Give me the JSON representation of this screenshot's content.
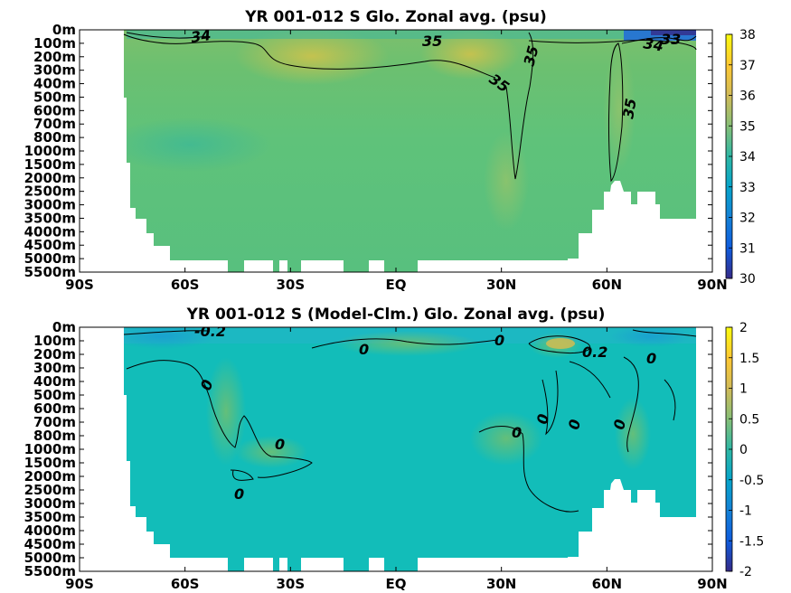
{
  "chart_data": [
    {
      "type": "heatmap",
      "title": "YR 001-012 S Glo. Zonal avg. (psu)",
      "x_tick_labels": [
        "90S",
        "60S",
        "30S",
        "EQ",
        "30N",
        "60N",
        "90N"
      ],
      "x_ticks": [
        -90,
        -60,
        -30,
        0,
        30,
        60,
        90
      ],
      "y_tick_labels": [
        "0m",
        "100m",
        "200m",
        "300m",
        "400m",
        "500m",
        "600m",
        "700m",
        "800m",
        "1000m",
        "1500m",
        "2000m",
        "2500m",
        "3000m",
        "3500m",
        "4000m",
        "4500m",
        "5000m",
        "5500m"
      ],
      "colorbar_ticks": [
        "30",
        "31",
        "32",
        "33",
        "34",
        "35",
        "36",
        "37",
        "38"
      ],
      "colorbar_range": [
        30,
        38
      ],
      "contour_labels": [
        "34",
        "35",
        "35",
        "35",
        "34",
        "33",
        "35"
      ],
      "grid": false
    },
    {
      "type": "heatmap",
      "title": "YR 001-012 S (Model-Clm.) Glo. Zonal avg. (psu)",
      "x_tick_labels": [
        "90S",
        "60S",
        "30S",
        "EQ",
        "30N",
        "60N",
        "90N"
      ],
      "x_ticks": [
        -90,
        -60,
        -30,
        0,
        30,
        60,
        90
      ],
      "y_tick_labels": [
        "0m",
        "100m",
        "200m",
        "300m",
        "400m",
        "500m",
        "600m",
        "700m",
        "800m",
        "1000m",
        "1500m",
        "2000m",
        "2500m",
        "3000m",
        "3500m",
        "4000m",
        "4500m",
        "5000m",
        "5500m"
      ],
      "colorbar_ticks": [
        "2",
        "1.5",
        "1",
        "0.5",
        "0",
        "-0.5",
        "-1",
        "-1.5",
        "-2"
      ],
      "colorbar_range": [
        -2,
        2
      ],
      "contour_labels": [
        "-0.2",
        "0",
        "0",
        "0",
        "0",
        "0",
        "0",
        "0",
        "0.2",
        "0",
        "0",
        "0"
      ],
      "grid": false
    }
  ],
  "colors": {
    "parula_low": "#352a87",
    "parula_mid": "#12beb9",
    "parula_high": "#f9fb0e",
    "mask": "#ffffff"
  }
}
